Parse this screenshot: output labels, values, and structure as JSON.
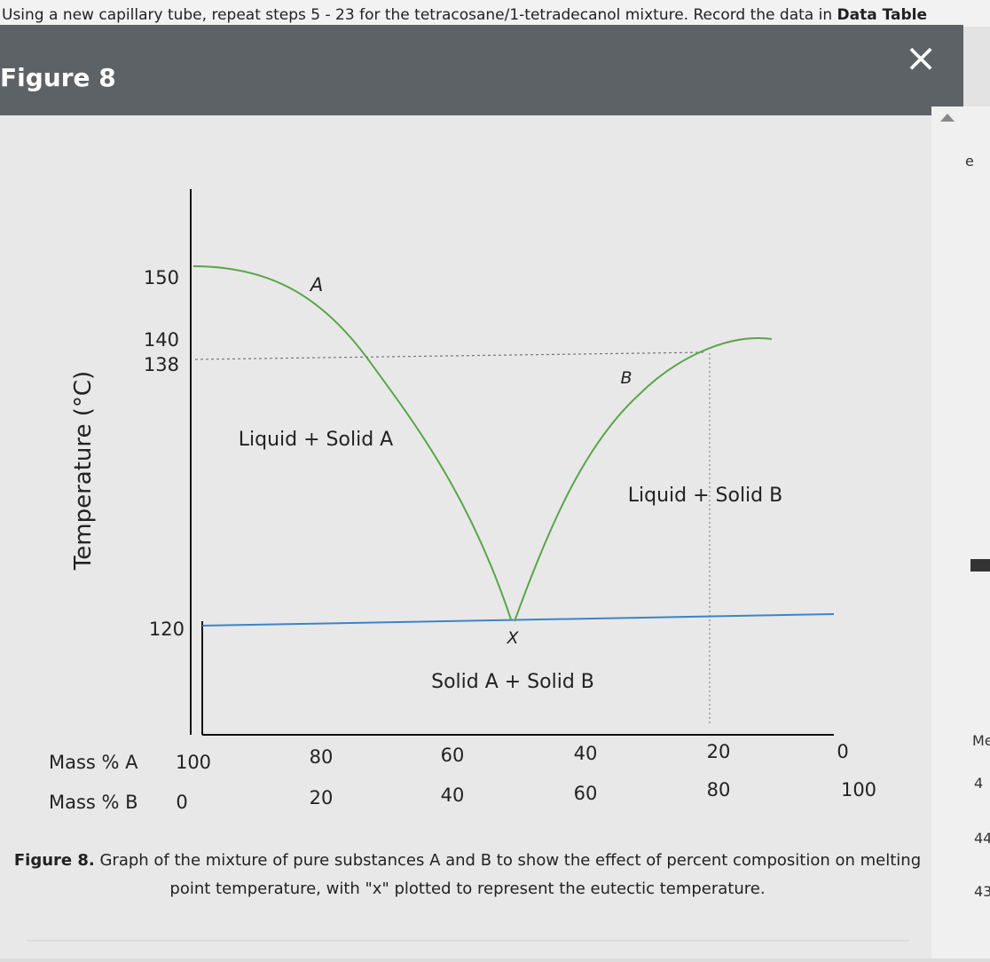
{
  "instruction": {
    "text": "Using a new capillary tube, repeat steps 5 - 23 for the tetracosane/1-tetradecanol mixture. Record the data in",
    "link": "Data Table"
  },
  "dialog": {
    "title": "Figure 8",
    "close": "×"
  },
  "figure": {
    "y_axis_label": "Temperature (°C)",
    "y_tick_labels": [
      "150",
      "140",
      "138",
      "120"
    ],
    "curve_labels": [
      "A",
      "B",
      "X"
    ],
    "regions": [
      "Liquid + Solid A",
      "Liquid + Solid B",
      "Solid A + Solid B"
    ],
    "rows": [
      {
        "label": "Mass % A",
        "values": [
          "100",
          "80",
          "60",
          "40",
          "20",
          "0"
        ]
      },
      {
        "label": "Mass % B",
        "values": [
          "0",
          "20",
          "40",
          "60",
          "80",
          "100"
        ]
      }
    ],
    "caption": {
      "lead": "Figure 8.",
      "line1": "Graph of the mixture of pure substances A and B to show the effect of percent composition on melting",
      "line2": "point temperature, with \"x\" plotted to represent the eutectic temperature."
    }
  },
  "side": {
    "fragments": [
      "e",
      "Me",
      "4",
      "44",
      "43"
    ]
  }
}
